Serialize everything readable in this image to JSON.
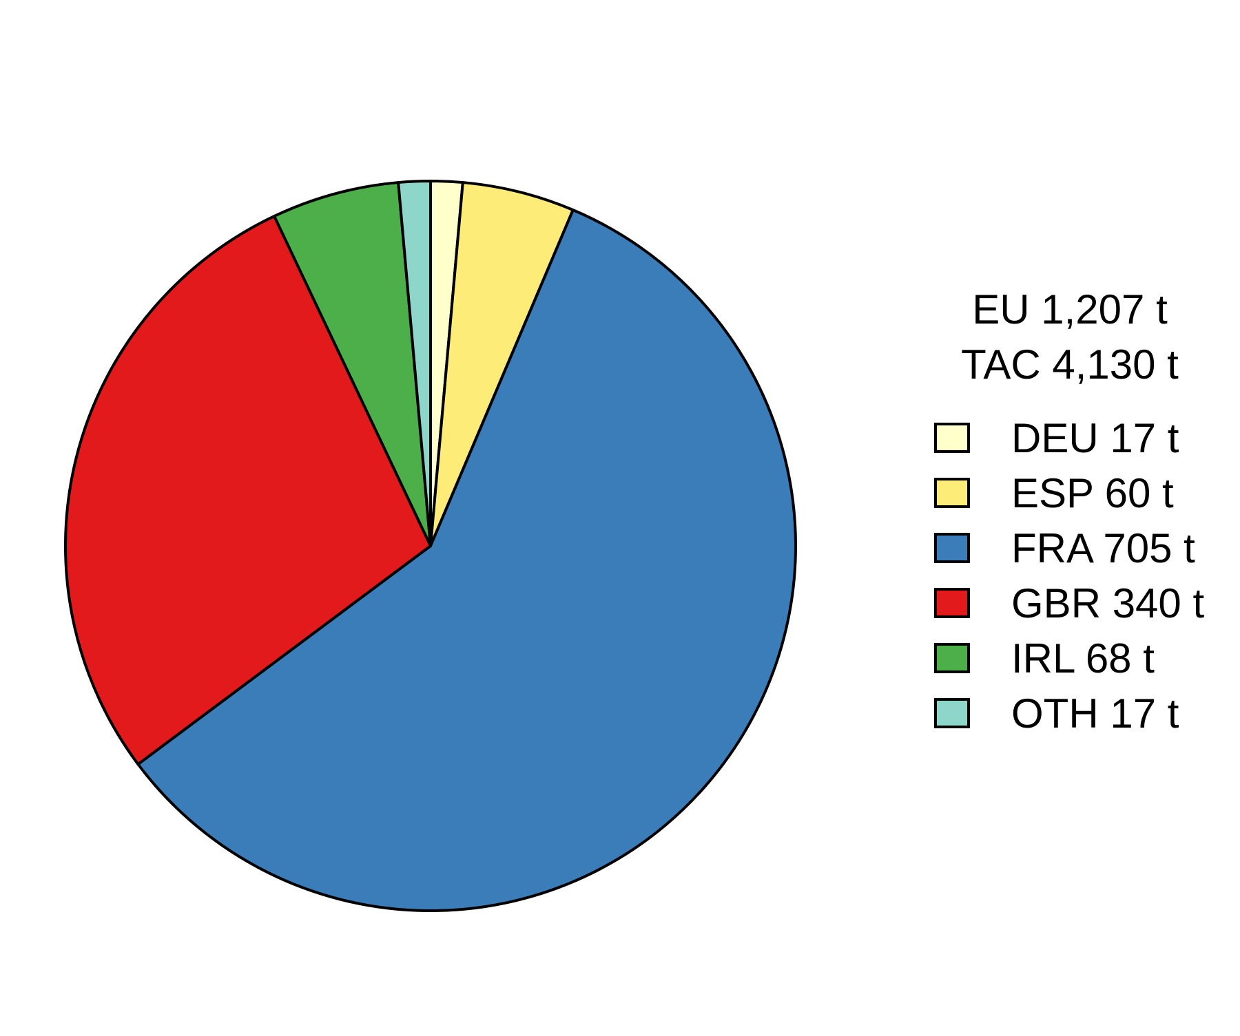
{
  "chart_data": {
    "type": "pie",
    "categories": [
      "DEU",
      "ESP",
      "FRA",
      "GBR",
      "IRL",
      "OTH"
    ],
    "values": [
      17,
      60,
      705,
      340,
      68,
      17
    ],
    "unit": "t",
    "colors": [
      "#ffffcc",
      "#fdec78",
      "#3a7db8",
      "#e31a1c",
      "#4daf4a",
      "#8fd6ca"
    ],
    "legend_labels": [
      "DEU 17 t",
      "ESP 60 t",
      "FRA 705 t",
      "GBR 340 t",
      "IRL 68 t",
      "OTH 17 t"
    ],
    "legend_header": [
      "EU 1,207 t",
      "TAC 4,130 t"
    ],
    "legend_position": "right",
    "start_angle": "12 o'clock",
    "direction": "clockwise"
  }
}
